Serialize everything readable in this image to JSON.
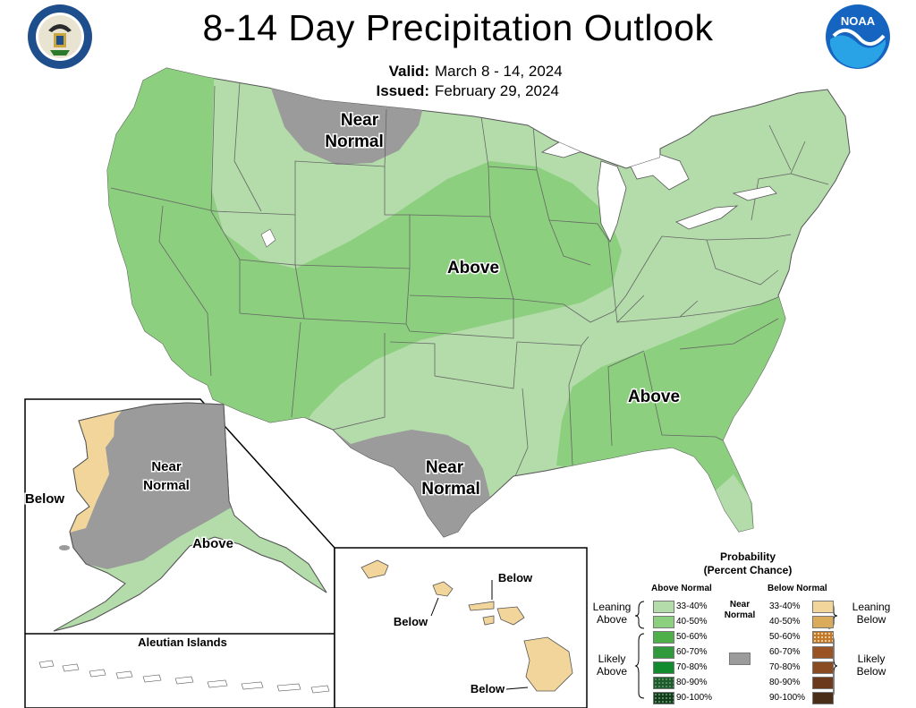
{
  "title": "8-14 Day Precipitation Outlook",
  "valid_label": "Valid:",
  "valid_value": "March 8 - 14, 2024",
  "issued_label": "Issued:",
  "issued_value": "February 29, 2024",
  "logos": {
    "left": "department-of-commerce-seal",
    "right": "noaa-logo"
  },
  "seal_text": "DEPARTMENT OF COMMERCE · UNITED STATES OF AMERICA",
  "noaa_text": "NOAA",
  "map_labels": {
    "conus_near_normal_north": [
      "Near",
      "Normal"
    ],
    "conus_above_central": "Above",
    "conus_above_southeast": "Above",
    "conus_near_normal_texas": [
      "Near",
      "Normal"
    ],
    "alaska_near_normal": [
      "Near",
      "Normal"
    ],
    "alaska_below": "Below",
    "alaska_above": "Above",
    "aleutian_islands": "Aleutian Islands",
    "hawaii_below_1": "Below",
    "hawaii_below_2": "Below",
    "hawaii_below_3": "Below"
  },
  "legend": {
    "title": [
      "Probability",
      "(Percent Chance)"
    ],
    "above_header": "Above Normal",
    "below_header": "Below Normal",
    "near_label": [
      "Near",
      "Normal"
    ],
    "leaning_above": [
      "Leaning",
      "Above"
    ],
    "likely_above": [
      "Likely",
      "Above"
    ],
    "leaning_below": [
      "Leaning",
      "Below"
    ],
    "likely_below": [
      "Likely",
      "Below"
    ],
    "above_bins": [
      {
        "label": "33-40%",
        "color": "#b3dcaa"
      },
      {
        "label": "40-50%",
        "color": "#8ccf7e"
      },
      {
        "label": "50-60%",
        "color": "#4fb04a"
      },
      {
        "label": "60-70%",
        "color": "#2e9a3c"
      },
      {
        "label": "70-80%",
        "color": "#128a2e"
      },
      {
        "label": "80-90%",
        "color": "#1d5b2d"
      },
      {
        "label": "90-100%",
        "color": "#133b1e"
      }
    ],
    "below_bins": [
      {
        "label": "33-40%",
        "color": "#f1d59a"
      },
      {
        "label": "40-50%",
        "color": "#d9ab5a"
      },
      {
        "label": "50-60%",
        "color": "#c1782f"
      },
      {
        "label": "60-70%",
        "color": "#9a5424"
      },
      {
        "label": "70-80%",
        "color": "#8a4a22"
      },
      {
        "label": "80-90%",
        "color": "#6b3a1c"
      },
      {
        "label": "90-100%",
        "color": "#4a2e18"
      }
    ],
    "near_color": "#9b9b9b"
  },
  "map_colors": {
    "above_33_40": "#b3dcaa",
    "above_40_50": "#8ccf7e",
    "near_normal": "#9b9b9b",
    "below_33_40": "#f1d59a",
    "lakes": "#ffffff",
    "borders": "#555555"
  }
}
